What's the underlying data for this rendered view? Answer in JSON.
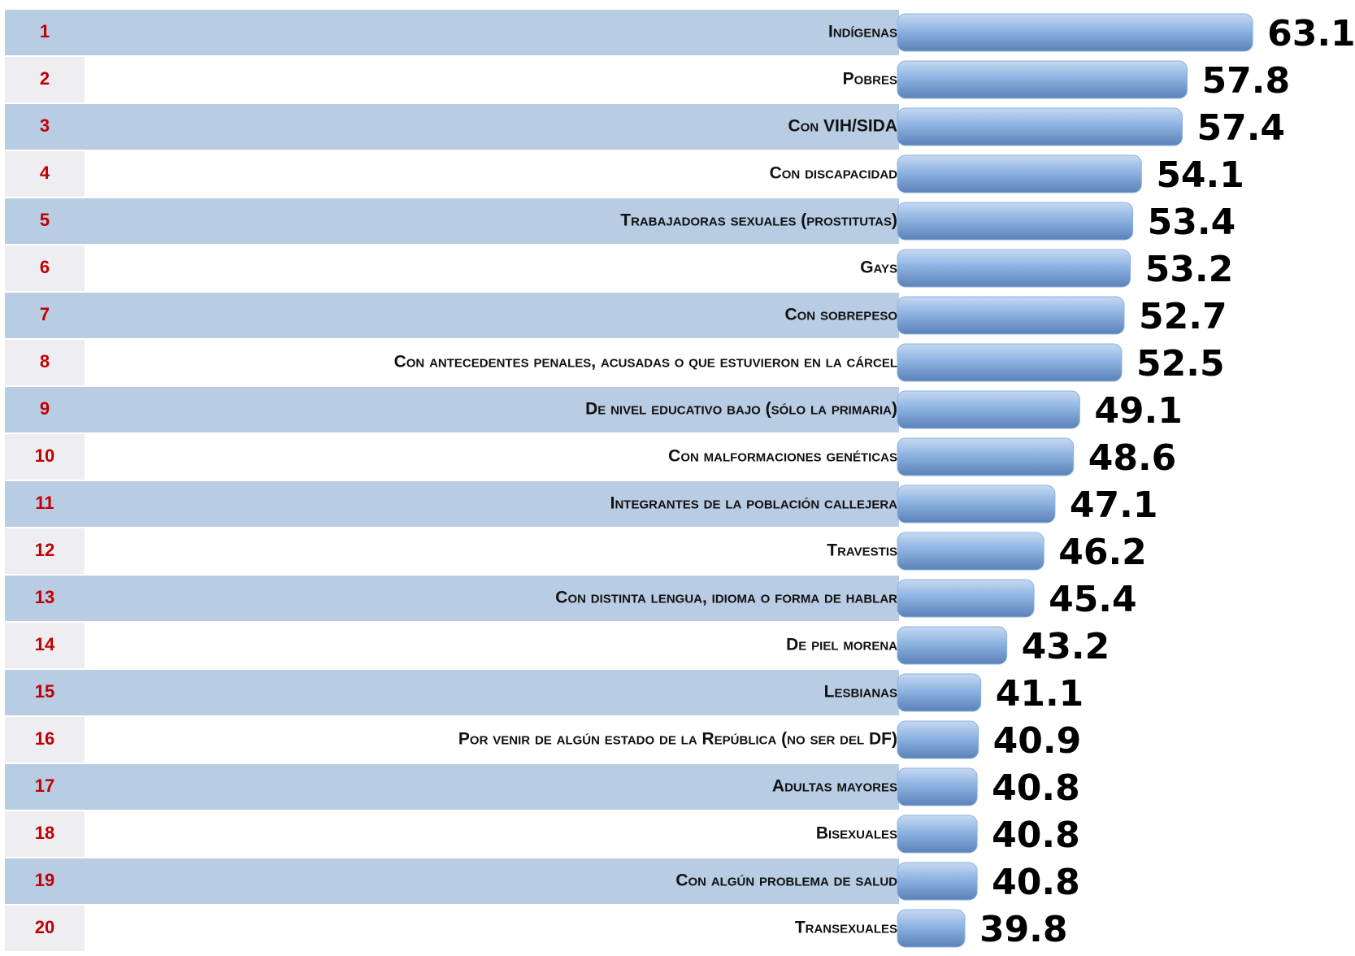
{
  "chart_data": {
    "type": "bar",
    "ranks": [
      1,
      2,
      3,
      4,
      5,
      6,
      7,
      8,
      9,
      10,
      11,
      12,
      13,
      14,
      15,
      16,
      17,
      18,
      19,
      20
    ],
    "categories": [
      "Indígenas",
      "Pobres",
      "Con VIH/SIDA",
      "Con discapacidad",
      "Trabajadoras sexuales (prostitutas)",
      "Gays",
      "Con sobrepeso",
      "Con antecedentes penales, acusadas o que estuvieron en la cárcel",
      "De nivel educativo bajo (sólo la primaria)",
      "Con malformaciones genéticas",
      "Integrantes de la población callejera",
      "Travestis",
      "Con distinta lengua, idioma o forma de hablar",
      "De piel morena",
      "Lesbianas",
      "Por venir de algún estado de la República (no ser del DF)",
      "Adultas mayores",
      "Bisexuales",
      "Con algún problema de salud",
      "Transexuales"
    ],
    "values": [
      63.1,
      57.8,
      57.4,
      54.1,
      53.4,
      53.2,
      52.7,
      52.5,
      49.1,
      48.6,
      47.1,
      46.2,
      45.4,
      43.2,
      41.1,
      40.9,
      40.8,
      40.8,
      40.8,
      39.8
    ],
    "value_labels": [
      "63.1",
      "57.8",
      "57.4",
      "54.1",
      "53.4",
      "53.2",
      "52.7",
      "52.5",
      "49.1",
      "48.6",
      "47.1",
      "46.2",
      "45.4",
      "43.2",
      "41.1",
      "40.9",
      "40.8",
      "40.8",
      "40.8",
      "39.8"
    ],
    "color": "#8db3e2",
    "xlim": [
      35,
      70
    ]
  }
}
